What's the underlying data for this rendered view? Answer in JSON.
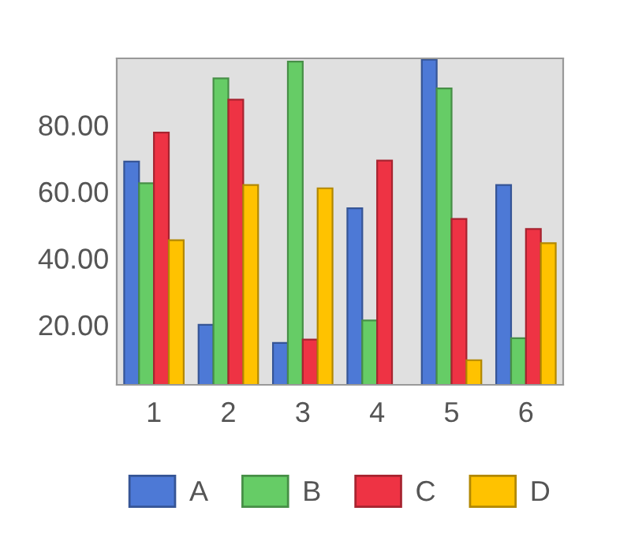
{
  "chart_data": {
    "type": "bar",
    "categories": [
      "1",
      "2",
      "3",
      "4",
      "5",
      "6"
    ],
    "series": [
      {
        "name": "A",
        "color": "#4d79d6",
        "values": [
          69,
          20,
          14.6,
          55,
          99.6,
          62
        ]
      },
      {
        "name": "B",
        "color": "#66cc66",
        "values": [
          62.5,
          94,
          99,
          21.3,
          91,
          16
        ]
      },
      {
        "name": "C",
        "color": "#ee3344",
        "values": [
          77.7,
          87.6,
          15.6,
          69.3,
          51.8,
          48.8
        ]
      },
      {
        "name": "D",
        "color": "#ffc200",
        "values": [
          45.4,
          62,
          61,
          null,
          9.4,
          44.5
        ]
      }
    ],
    "ylim": [
      2,
      100
    ],
    "yticks": [
      {
        "value": 20,
        "label": "20.00"
      },
      {
        "value": 40,
        "label": "40.00"
      },
      {
        "value": 60,
        "label": "60.00"
      },
      {
        "value": 80,
        "label": "80.00"
      }
    ],
    "grid": false,
    "legend": "bottom"
  }
}
